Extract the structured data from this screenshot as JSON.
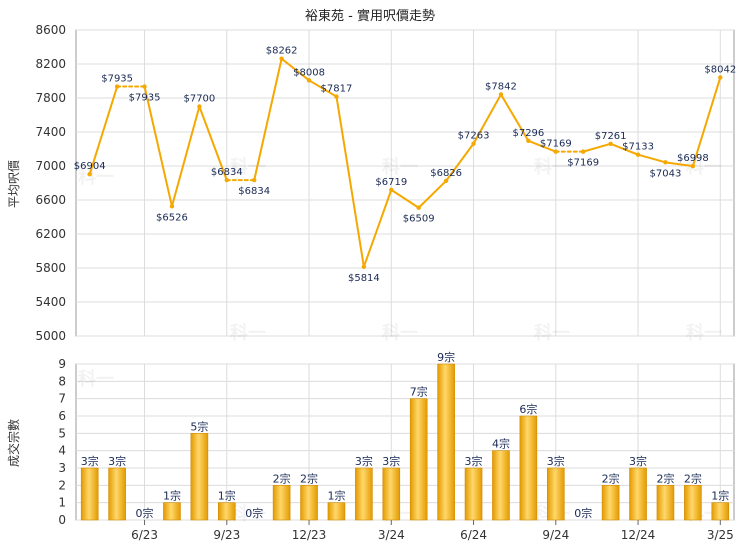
{
  "chart_data": [
    {
      "type": "line",
      "title": "裕東苑 - 實用呎價走勢",
      "ylabel": "平均呎價",
      "ylim": [
        5000,
        8600
      ],
      "yticks": [
        5000,
        5400,
        5800,
        6200,
        6600,
        7000,
        7400,
        7800,
        8200,
        8600
      ],
      "grid": true,
      "color": "#f5a800",
      "values": [
        6904,
        7935,
        7935,
        6526,
        7700,
        6834,
        6834,
        8262,
        8008,
        7817,
        5814,
        6719,
        6509,
        6826,
        7263,
        7842,
        7296,
        7169,
        7169,
        7261,
        7133,
        7043,
        6998,
        8042
      ],
      "labels": [
        "$6904",
        "$7935",
        "$7935",
        "$6526",
        "$7700",
        "$6834",
        "$6834",
        "$8262",
        "$8008",
        "$7817",
        "$5814",
        "$6719",
        "$6509",
        "$6826",
        "$7263",
        "$7842",
        "$7296",
        "$7169",
        "$7169",
        "$7261",
        "$7133",
        "$7043",
        "$6998",
        "$8042"
      ]
    },
    {
      "type": "bar",
      "ylabel": "成交宗數",
      "ylim": [
        0,
        9
      ],
      "yticks": [
        0,
        1,
        2,
        3,
        4,
        5,
        6,
        7,
        8,
        9
      ],
      "grid": true,
      "color": "#f5a800",
      "categories": [
        "6/23",
        "9/23",
        "12/23",
        "3/24",
        "6/24",
        "9/24",
        "12/24",
        "3/25"
      ],
      "values": [
        3,
        3,
        0,
        1,
        5,
        1,
        0,
        2,
        2,
        1,
        3,
        3,
        7,
        9,
        3,
        4,
        6,
        3,
        0,
        2,
        3,
        2,
        2,
        1
      ],
      "labels": [
        "3宗",
        "3宗",
        "0宗",
        "1宗",
        "5宗",
        "1宗",
        "0宗",
        "2宗",
        "2宗",
        "1宗",
        "3宗",
        "3宗",
        "7宗",
        "9宗",
        "3宗",
        "4宗",
        "6宗",
        "3宗",
        "0宗",
        "2宗",
        "3宗",
        "2宗",
        "2宗",
        "1宗"
      ]
    }
  ],
  "watermark": "科一"
}
